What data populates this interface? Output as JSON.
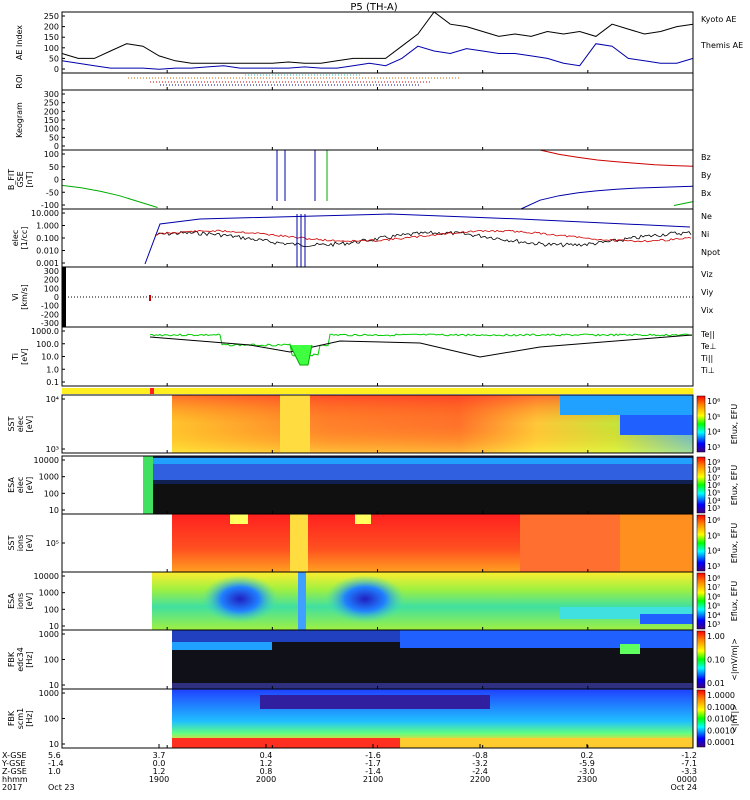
{
  "title": "P5 (TH-A)",
  "panels": [
    {
      "id": "ae",
      "ylabel": "AE Index",
      "ticks": [
        "250",
        "200",
        "150",
        "100",
        "50",
        "0"
      ],
      "legend": [
        {
          "text": "Kyoto AE",
          "color": "#0000aa"
        },
        {
          "text": "Themis AE",
          "color": "#000000"
        }
      ]
    },
    {
      "id": "roi",
      "ylabel": "ROI",
      "ticks": [],
      "legend": []
    },
    {
      "id": "keogram",
      "ylabel": "Keogram",
      "ticks": [
        "300",
        "250",
        "200",
        "150",
        "100",
        "50",
        "0"
      ],
      "legend": []
    },
    {
      "id": "bfit",
      "ylabel": "B_FIT\nGSE\n[nT]",
      "ticks": [
        "100",
        "50",
        "0",
        "-50",
        "-100"
      ],
      "legend": [
        {
          "text": "Bz",
          "color": "#cc0000"
        },
        {
          "text": "By",
          "color": "#00aa00"
        },
        {
          "text": "Bx",
          "color": "#0000aa"
        }
      ]
    },
    {
      "id": "dens",
      "ylabel": "elec\n[1/cc]",
      "ticks": [
        "10.000",
        "1.000",
        "0.100",
        "0.010",
        "0.001"
      ],
      "legend": [
        {
          "text": "Ne",
          "color": "#cc0000"
        },
        {
          "text": "Ni",
          "color": "#000000"
        },
        {
          "text": "Npot",
          "color": "#0000aa"
        }
      ]
    },
    {
      "id": "vi",
      "ylabel": "Vi\n[km/s]",
      "ticks": [
        "300",
        "200",
        "100",
        "0",
        "-100",
        "-200",
        "-300"
      ],
      "legend": [
        {
          "text": "Viz",
          "color": "#cc0000"
        },
        {
          "text": "Viy",
          "color": "#00aa00"
        },
        {
          "text": "Vix",
          "color": "#0000aa"
        }
      ]
    },
    {
      "id": "temp",
      "ylabel": "Ti\n[eV]",
      "ticks": [
        "1000.0",
        "100.0",
        "10.0",
        "1.0",
        "0.1"
      ],
      "legend": [
        {
          "text": "Te||",
          "color": "#000000"
        },
        {
          "text": "Te⊥",
          "color": "#cc0000"
        },
        {
          "text": "Ti||",
          "color": "#00aa00"
        },
        {
          "text": "Ti⊥",
          "color": "#0000aa"
        }
      ]
    },
    {
      "id": "sst_e",
      "ylabel": "SST\nelec\n[eV]",
      "ticks": [
        "10⁴",
        "10³"
      ],
      "legend": []
    },
    {
      "id": "esa_e",
      "ylabel": "ESA\nelec\n[eV]",
      "ticks": [
        "10000",
        "1000",
        "100",
        "10"
      ],
      "legend": []
    },
    {
      "id": "sst_i",
      "ylabel": "SST\nions\n[eV]",
      "ticks": [
        "10⁵"
      ],
      "legend": []
    },
    {
      "id": "esa_i",
      "ylabel": "ESA\nions\n[eV]",
      "ticks": [
        "10000",
        "1000",
        "100",
        "10"
      ],
      "legend": []
    },
    {
      "id": "fbk_e",
      "ylabel": "FBK\nedc34\n[Hz]",
      "ticks": [
        "1000",
        "100",
        "10"
      ],
      "legend": []
    },
    {
      "id": "fbk_b",
      "ylabel": "FBK\nscm1\n[Hz]",
      "ticks": [
        "1000",
        "100",
        "10"
      ],
      "legend": []
    }
  ],
  "colorbars": [
    {
      "label": "Eflux, EFU",
      "ticks": [
        "10⁶",
        "10⁵",
        "10⁴",
        "10³"
      ]
    },
    {
      "label": "Eflux, EFU",
      "ticks": [
        "10⁹",
        "10⁸",
        "10⁷",
        "10⁶",
        "10⁵",
        "10⁴",
        "10³"
      ]
    },
    {
      "label": "Eflux, EFU",
      "ticks": [
        "10⁶",
        "10⁵",
        "10⁴",
        "10³"
      ]
    },
    {
      "label": "Eflux, EFU",
      "ticks": [
        "10⁸",
        "10⁷",
        "10⁶",
        "10⁵",
        "10⁴",
        "10³"
      ]
    },
    {
      "label": "<|mV/m|>",
      "ticks": [
        "1.00",
        "0.10",
        "0.01"
      ]
    },
    {
      "label": "<|nT|>",
      "ticks": [
        "1.0000",
        "0.1000",
        "0.0100",
        "0.0010",
        "0.0001"
      ]
    }
  ],
  "x_axis": {
    "row_labels": [
      "X-GSE",
      "Y-GSE",
      "Z-GSE",
      "hhmm",
      "2017"
    ],
    "columns": [
      {
        "vals": [
          "5.6",
          "-1.4",
          "1.0",
          "",
          "Oct 23"
        ]
      },
      {
        "vals": [
          "3.7",
          "0.0",
          "1.2",
          "1900",
          ""
        ]
      },
      {
        "vals": [
          "0.4",
          "1.2",
          "0.8",
          "2000",
          ""
        ]
      },
      {
        "vals": [
          "-1.6",
          "-1.7",
          "-1.4",
          "2100",
          ""
        ]
      },
      {
        "vals": [
          "-0.8",
          "-3.2",
          "-2.4",
          "2200",
          ""
        ]
      },
      {
        "vals": [
          "0.2",
          "-5.9",
          "-3.0",
          "2300",
          ""
        ]
      },
      {
        "vals": [
          "-1.2",
          "-7.1",
          "-3.3",
          "0000",
          "Oct 24"
        ]
      }
    ]
  },
  "chart_data": {
    "type": "line",
    "title": "P5 (TH-A)",
    "time_ticks": [
      "1900",
      "2000",
      "2100",
      "2200",
      "2300",
      "0000"
    ],
    "ae_index": {
      "ylabel": "AE Index",
      "ylim": [
        0,
        250
      ],
      "series": [
        {
          "name": "Kyoto AE",
          "values": [
            50,
            40,
            30,
            20,
            20,
            20,
            15,
            20,
            20,
            25,
            30,
            20,
            20,
            20,
            20,
            25,
            20,
            20,
            30,
            40,
            30,
            60,
            110,
            90,
            80,
            100,
            90,
            80,
            80,
            70,
            60,
            40,
            30,
            120,
            110,
            60,
            50,
            40,
            40,
            60
          ]
        },
        {
          "name": "Themis AE",
          "values": [
            80,
            60,
            60,
            90,
            120,
            110,
            70,
            50,
            40,
            40,
            40,
            40,
            40,
            40,
            45,
            40,
            40,
            50,
            60,
            60,
            60,
            110,
            160,
            250,
            200,
            190,
            170,
            150,
            160,
            150,
            170,
            160,
            170,
            150,
            200,
            180,
            160,
            170,
            190,
            200
          ]
        }
      ]
    },
    "b_field": {
      "ylabel": "B_FIT GSE [nT]",
      "ylim": [
        -100,
        100
      ],
      "series": [
        {
          "name": "Bz",
          "values": [
            null,
            null,
            null,
            null,
            null,
            null,
            null,
            null,
            null,
            null,
            null,
            null,
            null,
            null,
            null,
            null,
            null,
            null,
            null,
            null,
            null,
            null,
            null,
            null,
            null,
            100,
            85,
            75,
            66,
            60,
            55,
            50,
            47,
            45
          ]
        },
        {
          "name": "By",
          "values": [
            -20,
            -28,
            -40,
            -55,
            -75,
            -95,
            null,
            null,
            null,
            null,
            null,
            null,
            null,
            null,
            null,
            null,
            null,
            null,
            null,
            null,
            null,
            null,
            null,
            null,
            null,
            null,
            null,
            null,
            null,
            null,
            null,
            null,
            -88,
            -75
          ]
        },
        {
          "name": "Bx",
          "values": [
            null,
            null,
            null,
            null,
            null,
            null,
            null,
            null,
            null,
            null,
            null,
            null,
            null,
            null,
            null,
            null,
            null,
            null,
            null,
            null,
            null,
            null,
            null,
            null,
            -100,
            -70,
            -55,
            -45,
            -38,
            -33,
            -29,
            -27,
            -25,
            -23
          ]
        }
      ]
    },
    "density": {
      "ylabel": "elec [1/cc]",
      "ylim": [
        0.001,
        10
      ],
      "scale": "log",
      "series": [
        {
          "name": "Ne"
        },
        {
          "name": "Ni"
        },
        {
          "name": "Npot"
        }
      ]
    },
    "temperature": {
      "ylabel": "Ti [eV]",
      "ylim": [
        0.1,
        1000
      ],
      "scale": "log",
      "series": [
        {
          "name": "Te||"
        },
        {
          "name": "Te⊥"
        },
        {
          "name": "Ti||"
        },
        {
          "name": "Ti⊥"
        }
      ]
    }
  }
}
